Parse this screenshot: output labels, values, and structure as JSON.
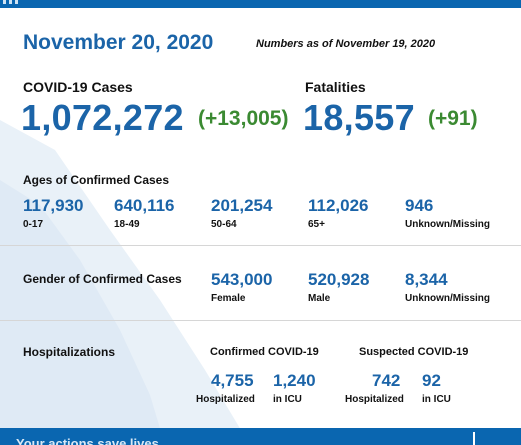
{
  "date": "November 20, 2020",
  "as_of": "Numbers as of November 19, 2020",
  "cases": {
    "label": "COVID-19 Cases",
    "value": "1,072,272",
    "delta": "(+13,005)"
  },
  "fatalities": {
    "label": "Fatalities",
    "value": "18,557",
    "delta": "(+91)"
  },
  "ages": {
    "label": "Ages of Confirmed Cases",
    "groups": [
      {
        "value": "117,930",
        "label": "0-17"
      },
      {
        "value": "640,116",
        "label": "18-49"
      },
      {
        "value": "201,254",
        "label": "50-64"
      },
      {
        "value": "112,026",
        "label": "65+"
      },
      {
        "value": "946",
        "label": "Unknown/Missing"
      }
    ]
  },
  "gender": {
    "label": "Gender of Confirmed Cases",
    "groups": [
      {
        "value": "543,000",
        "label": "Female"
      },
      {
        "value": "520,928",
        "label": "Male"
      },
      {
        "value": "8,344",
        "label": "Unknown/Missing"
      }
    ]
  },
  "hospitalizations": {
    "label": "Hospitalizations",
    "confirmed": {
      "label": "Confirmed COVID-19",
      "hospitalized": {
        "value": "4,755",
        "label": "Hospitalized"
      },
      "icu": {
        "value": "1,240",
        "label": "in ICU"
      }
    },
    "suspected": {
      "label": "Suspected COVID-19",
      "hospitalized": {
        "value": "742",
        "label": "Hospitalized"
      },
      "icu": {
        "value": "92",
        "label": "in ICU"
      }
    }
  },
  "footer_text": "Your actions save lives",
  "colors": {
    "brand_blue": "#1b64a8",
    "delta_green": "#3b8a32",
    "bar_blue": "#0a66b0",
    "map_tint": "#e9f1f8"
  }
}
